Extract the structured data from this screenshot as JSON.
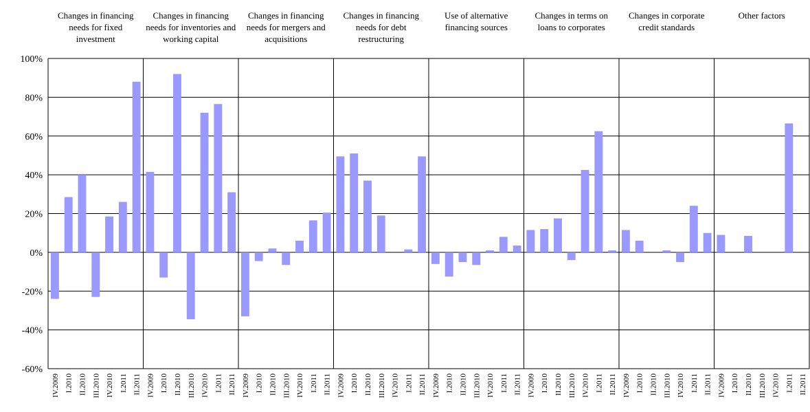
{
  "chart_data": {
    "type": "bar",
    "color": "#9999ff",
    "categories": [
      "IV.2009",
      "I.2010",
      "II.2010",
      "III.2010",
      "IV.2010",
      "I.2011",
      "II.2011"
    ],
    "ylim": [
      -60,
      100
    ],
    "yticks": [
      {
        "value": -60,
        "label": "-60%"
      },
      {
        "value": -40,
        "label": "-40%"
      },
      {
        "value": -20,
        "label": "-20%"
      },
      {
        "value": 0,
        "label": "0%"
      },
      {
        "value": 20,
        "label": "20%"
      },
      {
        "value": 40,
        "label": "40%"
      },
      {
        "value": 60,
        "label": "60%"
      },
      {
        "value": 80,
        "label": "80%"
      },
      {
        "value": 100,
        "label": "100%"
      }
    ],
    "grid": true,
    "panels": [
      {
        "title": "Changes in financing needs for fixed investment",
        "values": [
          -24,
          28.5,
          40,
          -23,
          18.5,
          26,
          88
        ]
      },
      {
        "title": "Changes in financing needs for inventories and working capital",
        "values": [
          41.5,
          -13,
          92,
          -34.5,
          72,
          76.5,
          31
        ]
      },
      {
        "title": "Changes in financing needs for mergers and acquisitions",
        "values": [
          -33,
          -4.5,
          2,
          -6.5,
          6,
          16.5,
          20.5
        ]
      },
      {
        "title": "Changes in financing needs for debt restructuring",
        "values": [
          49.5,
          51,
          37,
          19,
          0,
          1.5,
          49.5
        ]
      },
      {
        "title": "Use of alternative financing sources",
        "values": [
          -6,
          -12.5,
          -5,
          -6.5,
          1,
          8,
          3.5
        ]
      },
      {
        "title": "Changes in terms on loans to corporates",
        "values": [
          11.5,
          12,
          17.5,
          -4,
          42.5,
          62.5,
          1
        ]
      },
      {
        "title": "Changes in corporate credit standards",
        "values": [
          11.5,
          6,
          0,
          1,
          -5,
          24,
          10
        ]
      },
      {
        "title": "Other factors",
        "values": [
          9,
          0,
          8.5,
          0,
          0,
          66.5,
          0
        ]
      }
    ]
  }
}
